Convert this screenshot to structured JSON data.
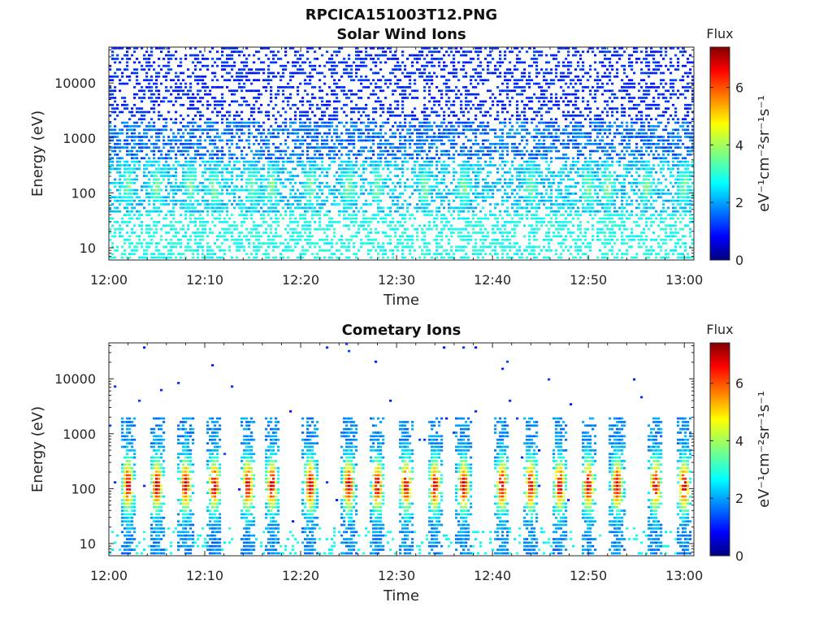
{
  "figure_title": "RPCICA151003T12.PNG",
  "chart_data": [
    {
      "type": "heatmap",
      "title": "Solar Wind Ions",
      "xlabel": "Time",
      "ylabel": "Energy (eV)",
      "x_ticks": [
        "12:00",
        "12:10",
        "12:20",
        "12:30",
        "12:40",
        "12:50",
        "13:00"
      ],
      "x_range_minutes": [
        0,
        61
      ],
      "y_ticks": [
        "10",
        "100",
        "1000",
        "10000"
      ],
      "y_scale": "log",
      "y_range": [
        6,
        45000
      ],
      "colorbar": {
        "title": "Flux",
        "label": "eV⁻¹cm⁻²sr⁻¹s⁻¹",
        "ticks": [
          "0",
          "2",
          "4",
          "6"
        ],
        "range": [
          0,
          7.4
        ],
        "colormap": "jet"
      },
      "pattern": {
        "population": "solar-wind",
        "peaks_at_minutes": [
          2,
          5,
          8.5,
          11,
          15,
          17,
          21,
          25,
          28,
          33,
          37,
          44,
          50,
          52,
          56,
          60
        ]
      }
    },
    {
      "type": "heatmap",
      "title": "Cometary Ions",
      "xlabel": "Time",
      "ylabel": "Energy (eV)",
      "x_ticks": [
        "12:00",
        "12:10",
        "12:20",
        "12:30",
        "12:40",
        "12:50",
        "13:00"
      ],
      "x_range_minutes": [
        0,
        61
      ],
      "y_ticks": [
        "10",
        "100",
        "1000",
        "10000"
      ],
      "y_scale": "log",
      "y_range": [
        6,
        45000
      ],
      "colorbar": {
        "title": "Flux",
        "label": "eV⁻¹cm⁻²sr⁻¹s⁻¹",
        "ticks": [
          "0",
          "2",
          "4",
          "6"
        ],
        "range": [
          0,
          7.4
        ],
        "colormap": "jet"
      },
      "pattern": {
        "population": "cometary",
        "peaks_at_minutes": [
          2,
          5,
          8,
          11,
          14.5,
          17,
          21,
          25,
          28,
          31,
          34,
          37,
          41,
          44,
          47,
          50,
          53,
          57,
          60
        ]
      }
    }
  ]
}
